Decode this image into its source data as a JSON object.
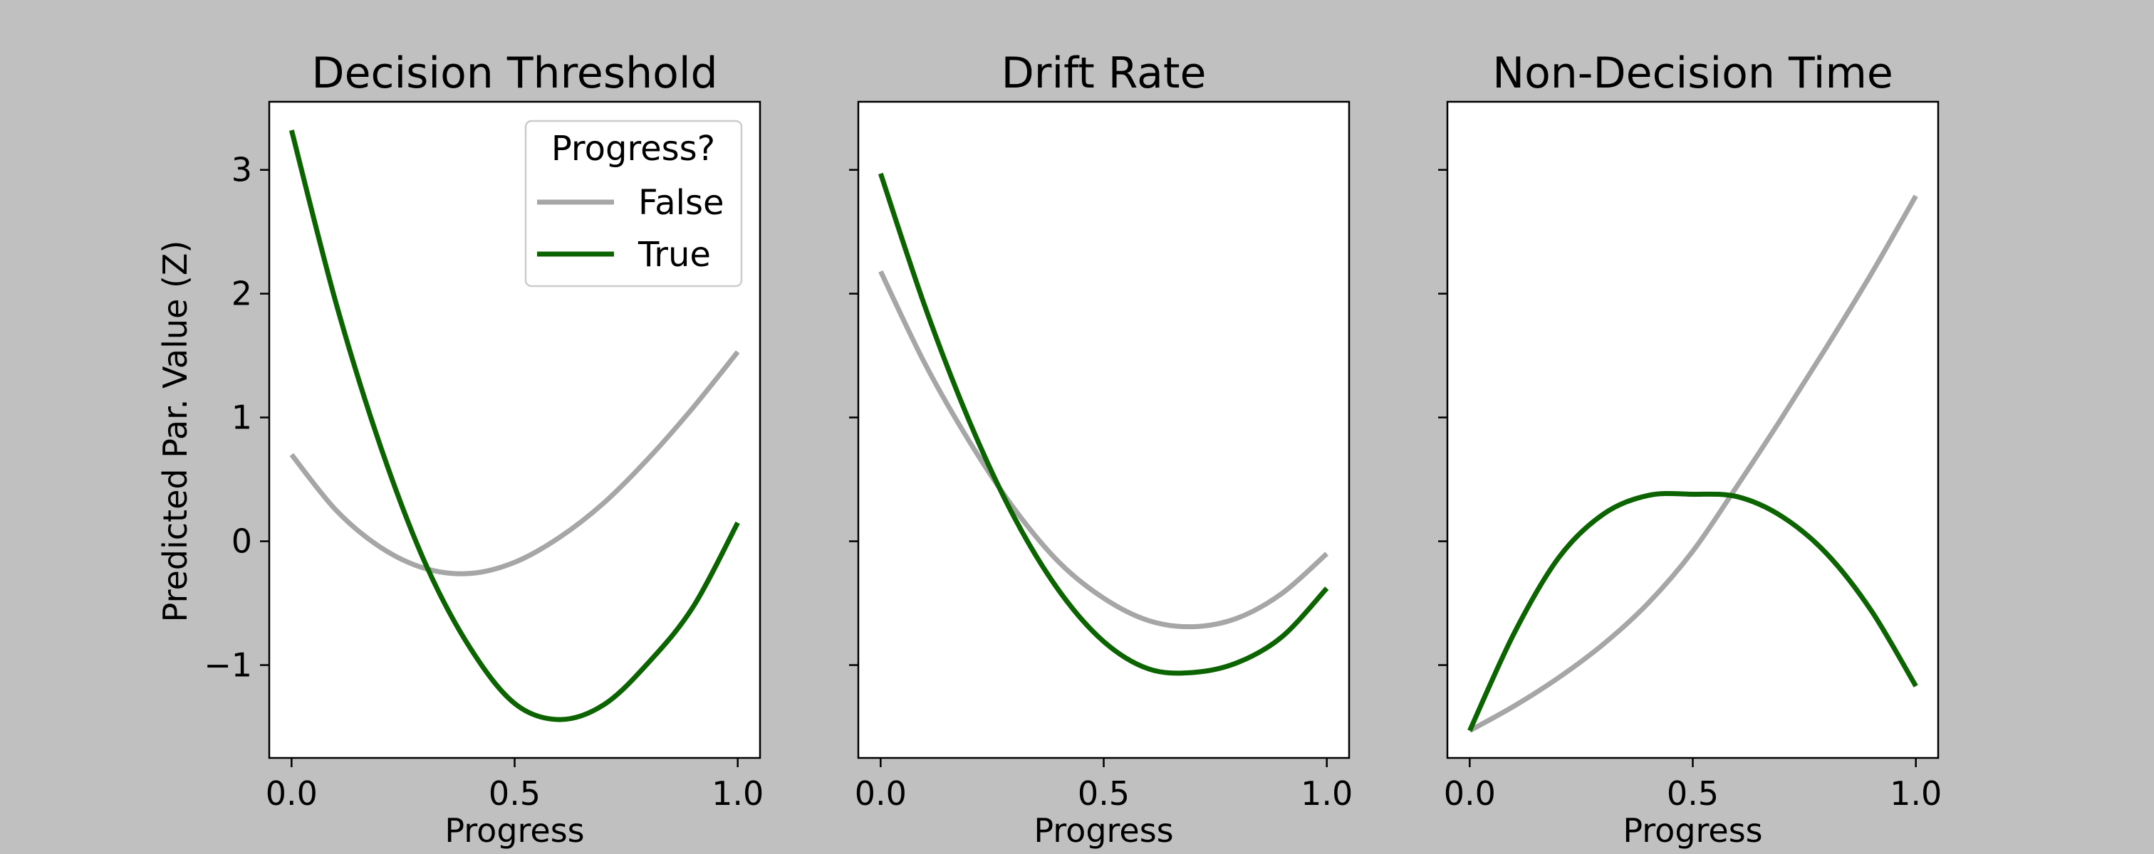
{
  "figure": {
    "background": "#c0c0c0",
    "ylabel": "Predicted Par. Value (Z)"
  },
  "legend": {
    "title": "Progress?",
    "placement": "upper-right of first panel",
    "entries": [
      {
        "label": "False",
        "color": "#a6a6a6"
      },
      {
        "label": "True",
        "color": "#0b6400"
      }
    ]
  },
  "chart_data": [
    {
      "type": "line",
      "title": "Decision Threshold",
      "xlabel": "Progress",
      "ylabel": "Predicted Par. Value (Z)",
      "xlim": [
        -0.05,
        1.05
      ],
      "ylim": [
        -1.75,
        3.55
      ],
      "xticks": [
        0.0,
        0.5,
        1.0
      ],
      "xtick_labels": [
        "0.0",
        "0.5",
        "1.0"
      ],
      "yticks": [
        -1,
        0,
        1,
        2,
        3
      ],
      "ytick_labels": [
        "−1",
        "0",
        "1",
        "2",
        "3"
      ],
      "grid": false,
      "x": [
        0,
        0.1,
        0.2,
        0.3,
        0.4,
        0.5,
        0.6,
        0.7,
        0.8,
        0.9,
        1.0
      ],
      "series": [
        {
          "name": "False",
          "color": "#a6a6a6",
          "values": [
            0.7,
            0.25,
            -0.05,
            -0.22,
            -0.26,
            -0.17,
            0.03,
            0.31,
            0.67,
            1.08,
            1.53
          ]
        },
        {
          "name": "True",
          "color": "#0b6400",
          "values": [
            3.32,
            1.92,
            0.76,
            -0.18,
            -0.86,
            -1.31,
            -1.44,
            -1.32,
            -0.98,
            -0.53,
            0.15
          ]
        }
      ]
    },
    {
      "type": "line",
      "title": "Drift Rate",
      "xlabel": "Progress",
      "ylabel": "",
      "xlim": [
        -0.05,
        1.05
      ],
      "ylim": [
        -1.75,
        3.55
      ],
      "xticks": [
        0.0,
        0.5,
        1.0
      ],
      "xtick_labels": [
        "0.0",
        "0.5",
        "1.0"
      ],
      "yticks": [
        -1,
        0,
        1,
        2,
        3
      ],
      "ytick_labels": [],
      "grid": false,
      "x": [
        0,
        0.1,
        0.2,
        0.3,
        0.4,
        0.5,
        0.6,
        0.7,
        0.8,
        0.9,
        1.0
      ],
      "series": [
        {
          "name": "False",
          "color": "#a6a6a6",
          "values": [
            2.18,
            1.43,
            0.8,
            0.26,
            -0.17,
            -0.46,
            -0.64,
            -0.69,
            -0.62,
            -0.42,
            -0.1
          ]
        },
        {
          "name": "True",
          "color": "#0b6400",
          "values": [
            2.97,
            1.89,
            0.96,
            0.19,
            -0.4,
            -0.81,
            -1.03,
            -1.06,
            -0.98,
            -0.77,
            -0.38
          ]
        }
      ]
    },
    {
      "type": "line",
      "title": "Non-Decision Time",
      "xlabel": "Progress",
      "ylabel": "",
      "xlim": [
        -0.05,
        1.05
      ],
      "ylim": [
        -1.75,
        3.55
      ],
      "xticks": [
        0.0,
        0.5,
        1.0
      ],
      "xtick_labels": [
        "0.0",
        "0.5",
        "1.0"
      ],
      "yticks": [
        -1,
        0,
        1,
        2,
        3
      ],
      "ytick_labels": [],
      "grid": false,
      "x": [
        0,
        0.1,
        0.2,
        0.3,
        0.4,
        0.5,
        0.6,
        0.7,
        0.8,
        0.9,
        1.0
      ],
      "series": [
        {
          "name": "False",
          "color": "#a6a6a6",
          "values": [
            -1.53,
            -1.33,
            -1.1,
            -0.83,
            -0.5,
            -0.08,
            0.45,
            1.0,
            1.57,
            2.16,
            2.79
          ]
        },
        {
          "name": "True",
          "color": "#0b6400",
          "values": [
            -1.53,
            -0.74,
            -0.13,
            0.22,
            0.37,
            0.38,
            0.36,
            0.2,
            -0.1,
            -0.56,
            -1.17
          ]
        }
      ]
    }
  ]
}
